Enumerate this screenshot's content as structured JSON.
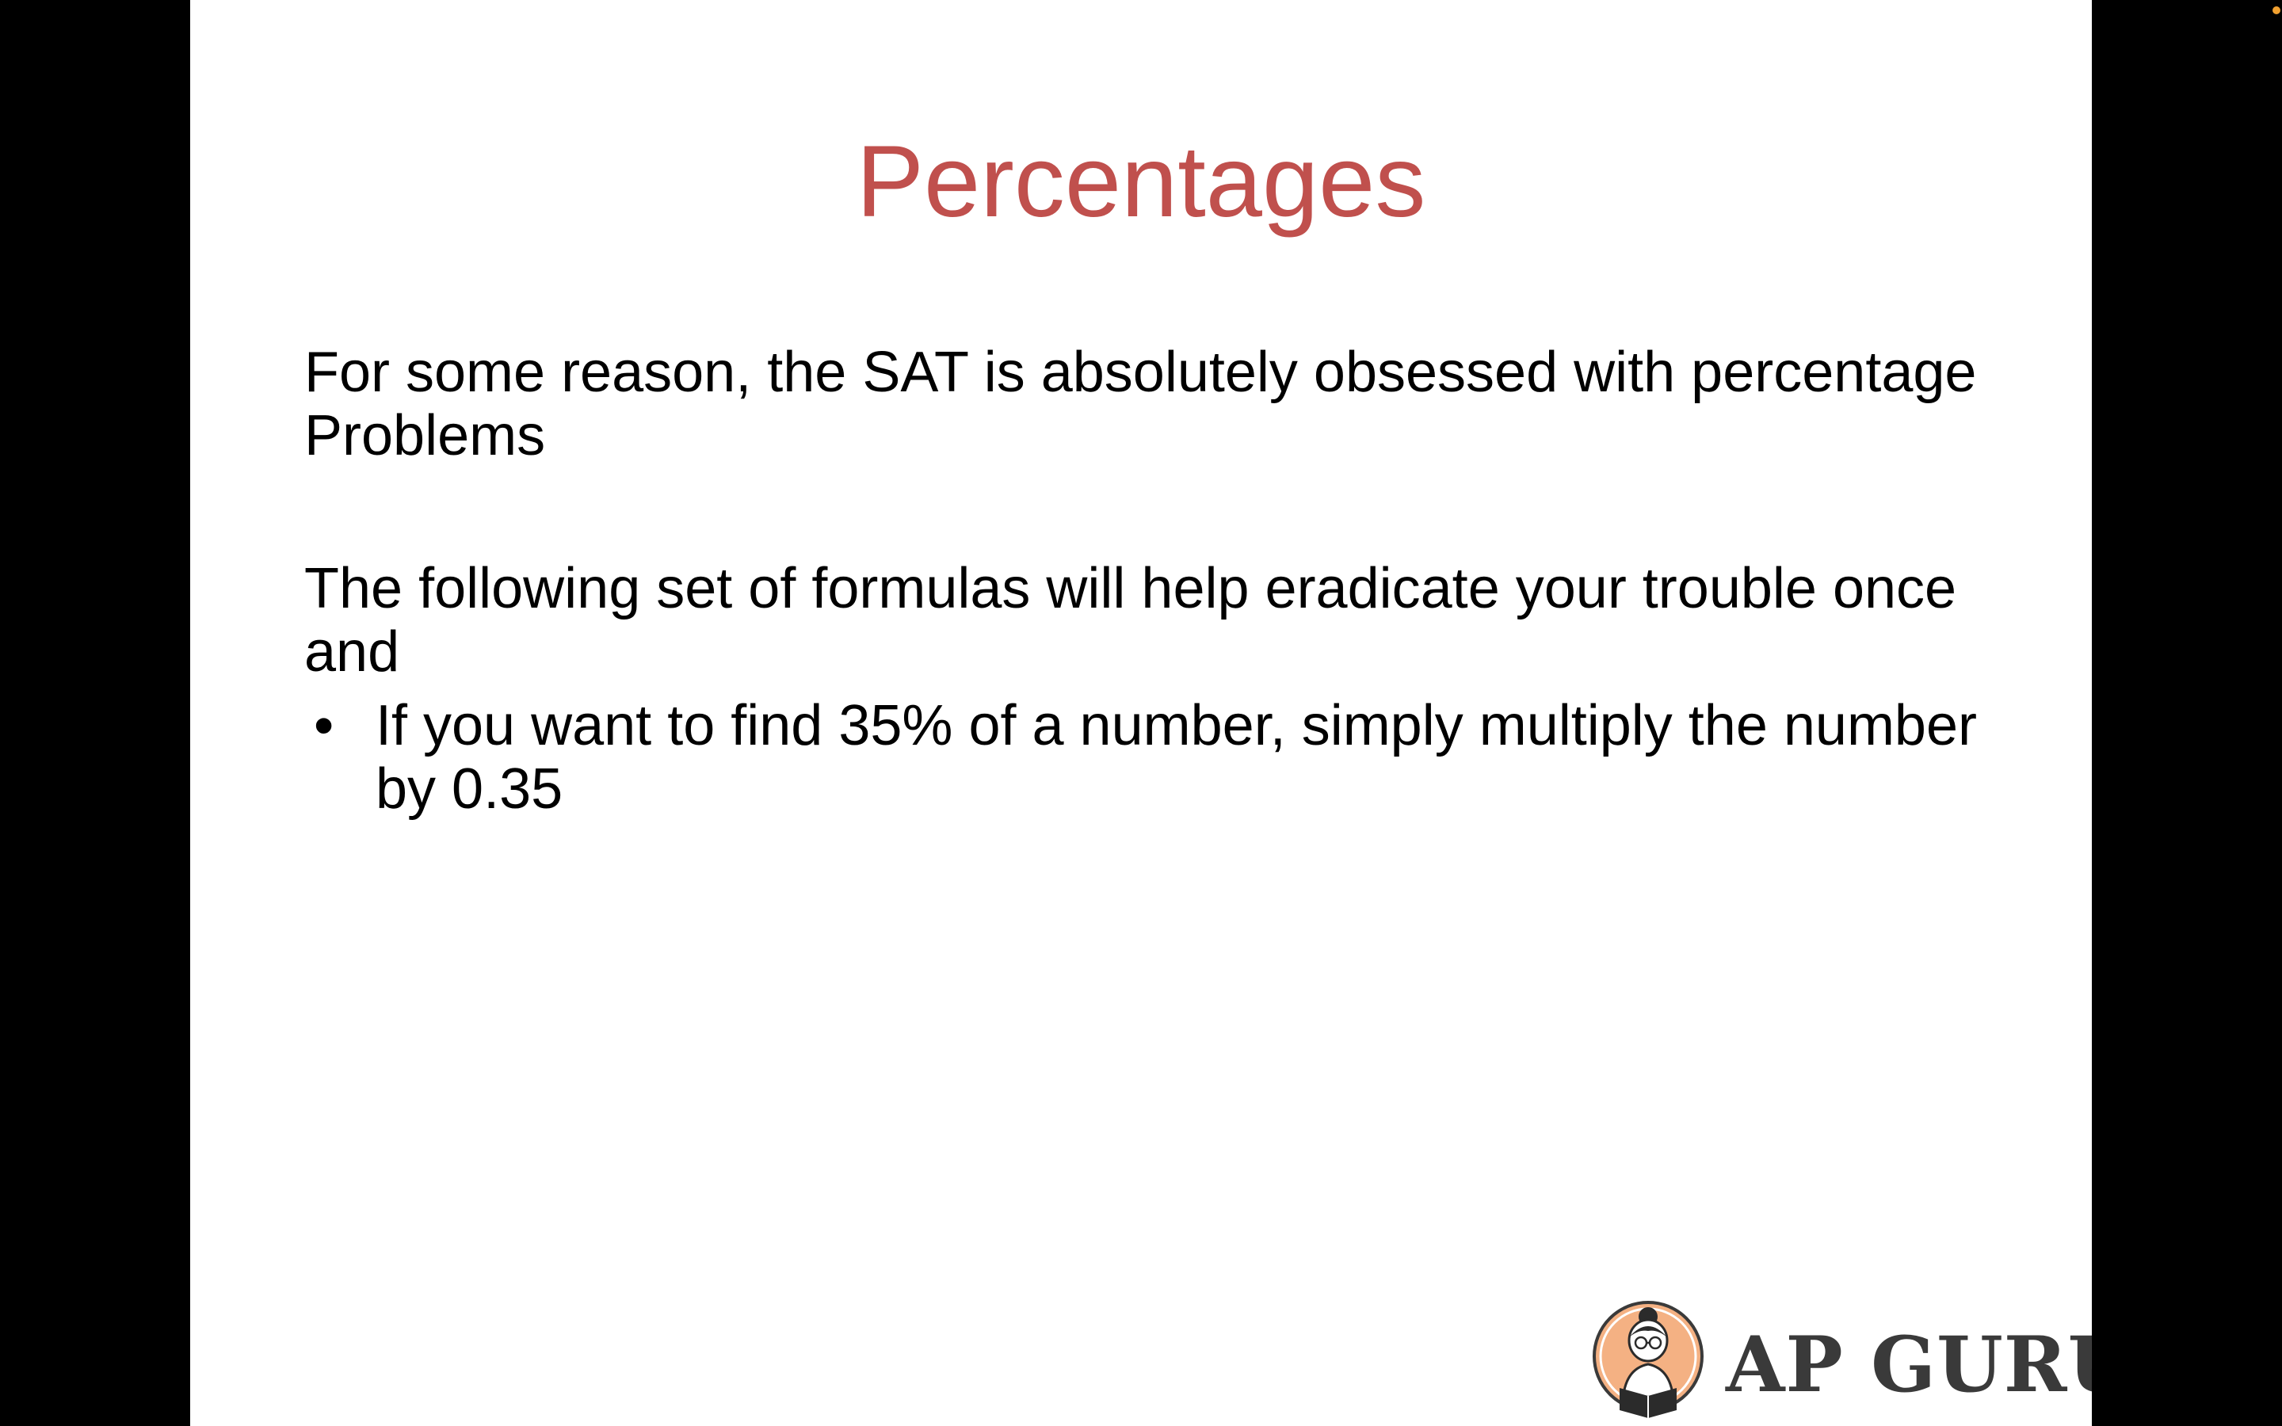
{
  "slide": {
    "title": "Percentages",
    "paragraph_1": "For some reason, the SAT is absolutely obsessed with percentage Problems",
    "paragraph_2": "The following set of formulas will help eradicate your trouble once and",
    "bullets": [
      {
        "marker": "•",
        "text": "If you want to find 35% of a number, simply multiply the number by 0.35"
      }
    ]
  },
  "logo": {
    "text": "AP GURU",
    "icon": "reader-character-icon"
  },
  "colors": {
    "title": "#c0504d",
    "body_text": "#000000",
    "slide_background": "#ffffff",
    "letterbox": "#000000",
    "logo_text": "#3a3a3a",
    "logo_circle": "#f4b183",
    "indicator_dot": "#f0a030"
  }
}
